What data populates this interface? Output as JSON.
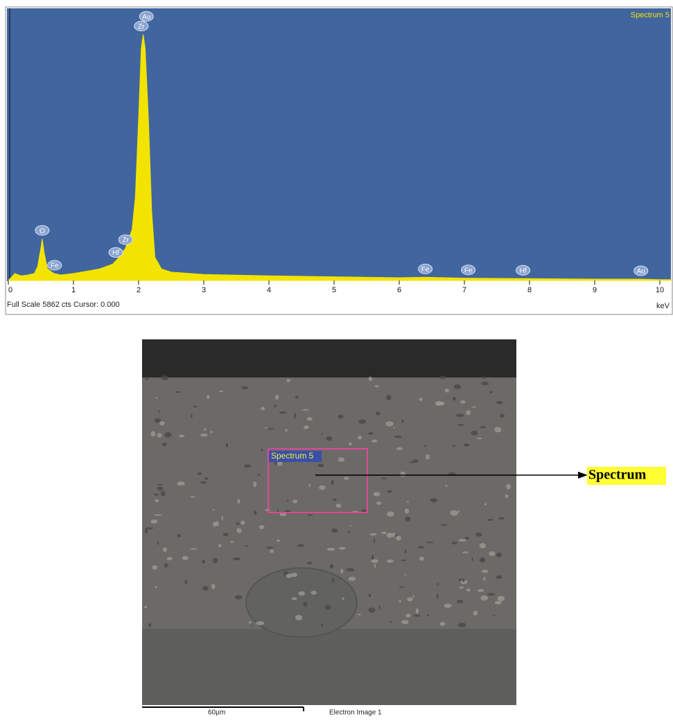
{
  "chart_data": {
    "type": "area",
    "title": "Spectrum 5",
    "footer": "Full Scale 5862 cts Cursor: 0.000",
    "x_label": "keV",
    "x": [
      0,
      0.1,
      0.2,
      0.3,
      0.4,
      0.45,
      0.5,
      0.52,
      0.55,
      0.6,
      0.7,
      0.8,
      1.0,
      1.2,
      1.4,
      1.6,
      1.7,
      1.8,
      1.85,
      1.9,
      1.95,
      2.0,
      2.04,
      2.07,
      2.1,
      2.15,
      2.2,
      2.25,
      2.35,
      2.5,
      3,
      4,
      5,
      6,
      6.4,
      7,
      8,
      9,
      9.7,
      10,
      10.17
    ],
    "values": [
      0,
      150,
      100,
      120,
      150,
      300,
      700,
      900,
      600,
      250,
      150,
      120,
      150,
      200,
      250,
      350,
      500,
      700,
      900,
      1100,
      1800,
      3500,
      5000,
      5300,
      5000,
      3500,
      1500,
      500,
      250,
      180,
      130,
      100,
      80,
      60,
      70,
      50,
      40,
      30,
      30,
      20,
      20
    ],
    "color": "#f2e400",
    "background": "#41659f",
    "xlim": [
      0,
      10.17
    ],
    "xticks": [
      0,
      1,
      2,
      3,
      4,
      5,
      6,
      7,
      8,
      9,
      10
    ],
    "ylim": [
      0,
      5862
    ],
    "peak_labels": [
      {
        "label": "O",
        "x": 0.52
      },
      {
        "label": "Fe",
        "x": 0.71
      },
      {
        "label": "Hf",
        "x": 1.65
      },
      {
        "label": "Zr",
        "x": 1.8
      },
      {
        "label": "Zr",
        "x": 2.04
      },
      {
        "label": "Au",
        "x": 2.12
      },
      {
        "label": "Fe",
        "x": 6.4
      },
      {
        "label": "Fe",
        "x": 7.06
      },
      {
        "label": "Hf",
        "x": 7.9
      },
      {
        "label": "Au",
        "x": 9.71
      }
    ]
  },
  "electron_image": {
    "region_label": "Spectrum 5",
    "callout": "Spectrum",
    "scale_bar": "60µm",
    "caption": "Electron Image 1"
  }
}
